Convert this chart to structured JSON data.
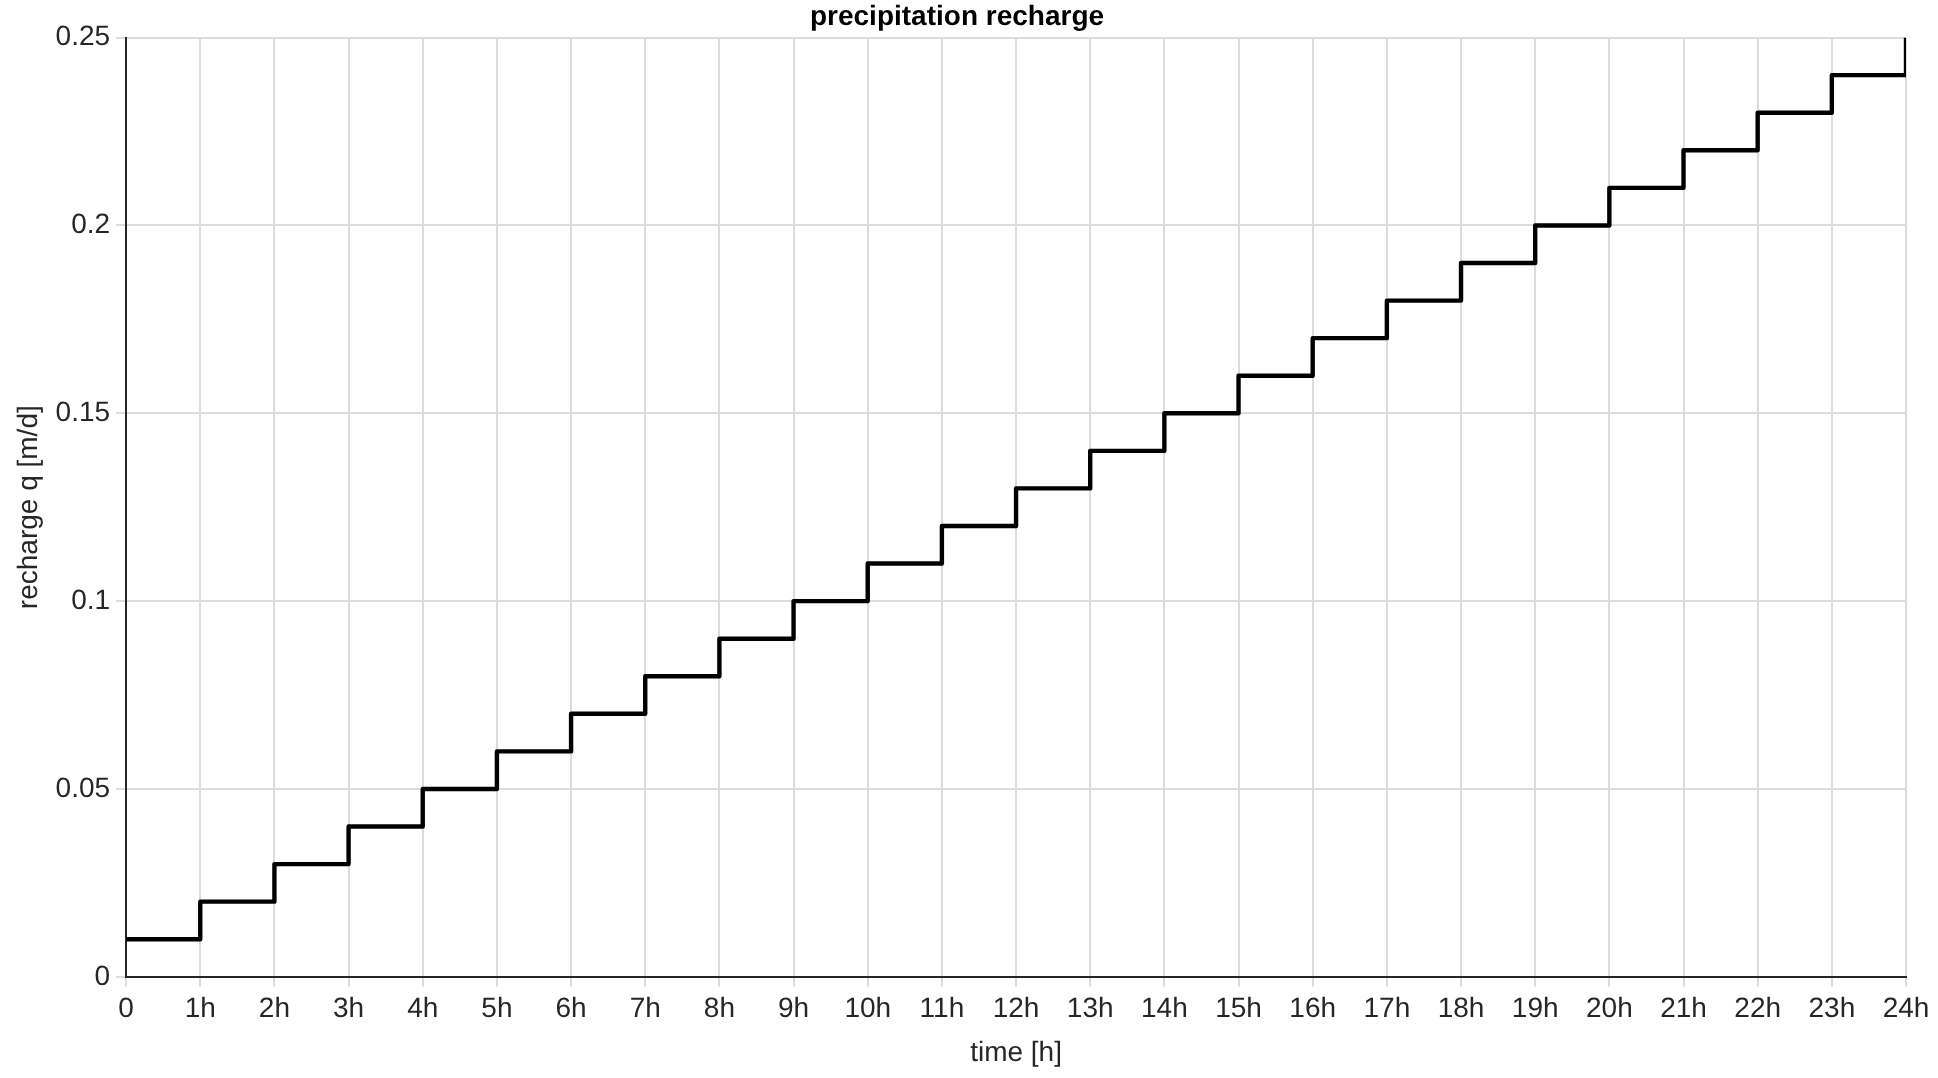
{
  "chart_data": {
    "type": "step",
    "title": "precipitation recharge",
    "xlabel": "time [h]",
    "ylabel": "recharge q [m/d]",
    "x": [
      0,
      1,
      2,
      3,
      4,
      5,
      6,
      7,
      8,
      9,
      10,
      11,
      12,
      13,
      14,
      15,
      16,
      17,
      18,
      19,
      20,
      21,
      22,
      23,
      24
    ],
    "series": [
      {
        "color": "#000000",
        "values": [
          0.01,
          0.02,
          0.03,
          0.04,
          0.05,
          0.06,
          0.07,
          0.08,
          0.09,
          0.1,
          0.11,
          0.12,
          0.13,
          0.14,
          0.15,
          0.16,
          0.17,
          0.18,
          0.19,
          0.2,
          0.21,
          0.22,
          0.23,
          0.24,
          0.25
        ]
      }
    ],
    "xlim": [
      0,
      24
    ],
    "xticks": [
      0,
      {
        "value": 1,
        "label": "1h"
      },
      {
        "value": 2,
        "label": "2h"
      },
      {
        "value": 3,
        "label": "3h"
      },
      {
        "value": 4,
        "label": "4h"
      },
      {
        "value": 5,
        "label": "5h"
      },
      {
        "value": 6,
        "label": "6h"
      },
      {
        "value": 7,
        "label": "7h"
      },
      {
        "value": 8,
        "label": "8h"
      },
      {
        "value": 9,
        "label": "9h"
      },
      {
        "value": 10,
        "label": "10h"
      },
      {
        "value": 11,
        "label": "11h"
      },
      {
        "value": 12,
        "label": "12h"
      },
      {
        "value": 13,
        "label": "13h"
      },
      {
        "value": 14,
        "label": "14h"
      },
      {
        "value": 15,
        "label": "15h"
      },
      {
        "value": 16,
        "label": "16h"
      },
      {
        "value": 17,
        "label": "17h"
      },
      {
        "value": 18,
        "label": "18h"
      },
      {
        "value": 19,
        "label": "19h"
      },
      {
        "value": 20,
        "label": "20h"
      },
      {
        "value": 21,
        "label": "21h"
      },
      {
        "value": 22,
        "label": "22h"
      },
      {
        "value": 23,
        "label": "23h"
      },
      {
        "value": 24,
        "label": "24h"
      }
    ],
    "ylim": [
      0,
      0.25
    ],
    "yticks": [
      0,
      0.05,
      0.1,
      0.15,
      0.2,
      0.25
    ],
    "grid": true,
    "legend": false
  }
}
